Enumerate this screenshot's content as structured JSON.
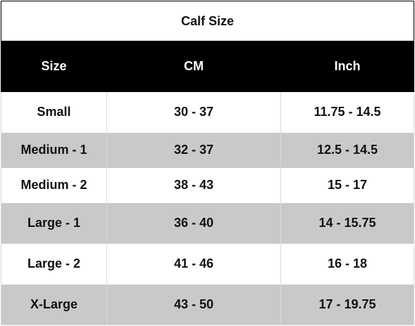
{
  "table": {
    "title": "Calf Size",
    "columns": [
      "Size",
      "CM",
      "Inch"
    ],
    "rows": [
      [
        "Small",
        "30 - 37",
        "11.75 - 14.5"
      ],
      [
        "Medium - 1",
        "32 - 37",
        "12.5 - 14.5"
      ],
      [
        "Medium - 2",
        "38 - 43",
        "15 - 17"
      ],
      [
        "Large - 1",
        "36 - 40",
        "14 - 15.75"
      ],
      [
        "Large - 2",
        "41 - 46",
        "16 - 18"
      ],
      [
        "X-Large",
        "43 - 50",
        "17 - 19.75"
      ]
    ]
  }
}
